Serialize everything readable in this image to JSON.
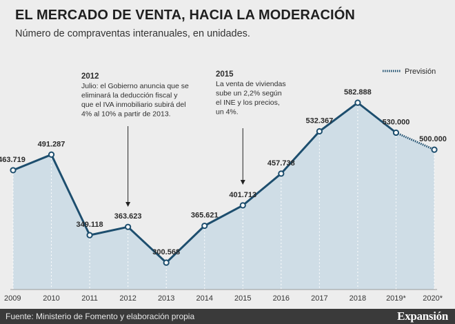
{
  "header": {
    "title": "EL MERCADO DE VENTA, HACIA LA MODERACIÓN",
    "subtitle": "Número de compraventas interanuales, en unidades."
  },
  "footer": {
    "source": "Fuente: Ministerio de Fomento y elaboración propia",
    "brand": "Expansión"
  },
  "colors": {
    "line": "#1d4e6e",
    "area": "#cfdde6",
    "background": "#ededed",
    "footer_bg": "#3a3a3a"
  },
  "chart_data": {
    "type": "area",
    "categories": [
      "2009",
      "2010",
      "2011",
      "2012",
      "2013",
      "2014",
      "2015",
      "2016",
      "2017",
      "2018",
      "2019*",
      "2020*"
    ],
    "values": [
      463719,
      491287,
      349118,
      363623,
      300568,
      365621,
      401713,
      457738,
      532367,
      582888,
      530000,
      500000
    ],
    "value_labels": [
      "463.719",
      "491.287",
      "349.118",
      "363.623",
      "300.568",
      "365.621",
      "401.713",
      "457.738",
      "532.367",
      "582.888",
      "530.000",
      "500.000"
    ],
    "forecast_from_index": 10,
    "legend": {
      "forecast_label": "Previsión",
      "placement": "top-right"
    },
    "ylim": [
      270000,
      600000
    ],
    "annotations": [
      {
        "category": "2012",
        "heading": "2012",
        "lines": [
          "Julio: el Gobierno anuncia que se",
          "eliminará la deducción fiscal y",
          "que el IVA inmobiliario subirá del",
          "4% al 10% a partir de 2013."
        ]
      },
      {
        "category": "2015",
        "heading": "2015",
        "lines": [
          "La venta de viviendas",
          "sube un 2,2% según",
          "el INE y los precios,",
          "un 4%."
        ]
      }
    ]
  }
}
